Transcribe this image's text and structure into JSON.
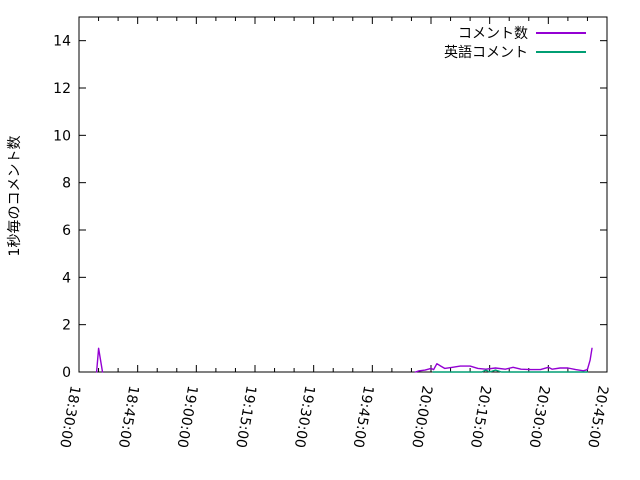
{
  "chart": {
    "background": "#ffffff",
    "axis_color": "#000000",
    "text_color": "#000000"
  },
  "chart_data": {
    "type": "line",
    "title": "",
    "xlabel": "",
    "ylabel": "1秒毎のコメント数",
    "x_axis": {
      "kind": "time",
      "start": "18:30:00",
      "end": "20:45:00",
      "major_tick_interval_min": 15,
      "minor_tick_interval_min": 5,
      "tick_labels": [
        "18:30:00",
        "18:45:00",
        "19:00:00",
        "19:15:00",
        "19:30:00",
        "19:45:00",
        "20:00:00",
        "20:15:00",
        "20:30:00",
        "20:45:00"
      ],
      "tick_label_rotation_deg": 100
    },
    "y_axis": {
      "min": 0,
      "max": 15,
      "tick_step": 2,
      "tick_labels": [
        "0",
        "2",
        "4",
        "6",
        "8",
        "10",
        "12",
        "14"
      ]
    },
    "grid": false,
    "legend_position": "top-right-inside",
    "series": [
      {
        "name": "コメント数",
        "color": "#9400d3",
        "segments": [
          [
            [
              "18:34:30",
              0
            ],
            [
              "18:35:00",
              1
            ],
            [
              "18:36:00",
              0
            ]
          ],
          [
            [
              "19:56:00",
              0
            ],
            [
              "19:57:00",
              0.05
            ],
            [
              "19:58:30",
              0.08
            ],
            [
              "20:00:00",
              0.15
            ],
            [
              "20:00:40",
              0.1
            ],
            [
              "20:01:30",
              0.35
            ],
            [
              "20:02:30",
              0.25
            ],
            [
              "20:03:30",
              0.15
            ],
            [
              "20:05:30",
              0.2
            ],
            [
              "20:07:30",
              0.25
            ],
            [
              "20:10:00",
              0.25
            ],
            [
              "20:12:00",
              0.15
            ],
            [
              "20:14:00",
              0.12
            ],
            [
              "20:16:30",
              0.17
            ],
            [
              "20:19:00",
              0.12
            ],
            [
              "20:21:00",
              0.2
            ],
            [
              "20:23:00",
              0.12
            ],
            [
              "20:25:30",
              0.1
            ],
            [
              "20:28:00",
              0.1
            ],
            [
              "20:30:00",
              0.2
            ],
            [
              "20:31:00",
              0.12
            ],
            [
              "20:33:00",
              0.17
            ],
            [
              "20:35:00",
              0.17
            ],
            [
              "20:37:00",
              0.1
            ],
            [
              "20:39:00",
              0.05
            ],
            [
              "20:40:00",
              0.1
            ],
            [
              "20:40:40",
              0.5
            ],
            [
              "20:41:10",
              1.0
            ]
          ]
        ]
      },
      {
        "name": "英語コメント",
        "color": "#009e73",
        "segments": [
          [
            [
              "20:00:30",
              0
            ],
            [
              "20:13:00",
              0
            ],
            [
              "20:14:00",
              0.08
            ],
            [
              "20:15:00",
              0
            ],
            [
              "20:16:30",
              0.08
            ],
            [
              "20:18:00",
              0
            ],
            [
              "20:40:00",
              0
            ]
          ]
        ]
      }
    ]
  }
}
